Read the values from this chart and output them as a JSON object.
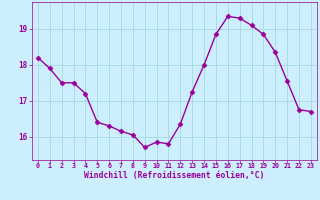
{
  "x": [
    0,
    1,
    2,
    3,
    4,
    5,
    6,
    7,
    8,
    9,
    10,
    11,
    12,
    13,
    14,
    15,
    16,
    17,
    18,
    19,
    20,
    21,
    22,
    23
  ],
  "y": [
    18.2,
    17.9,
    17.5,
    17.5,
    17.2,
    16.4,
    16.3,
    16.15,
    16.05,
    15.7,
    15.85,
    15.8,
    16.35,
    17.25,
    18.0,
    18.85,
    19.35,
    19.3,
    19.1,
    18.85,
    18.35,
    17.55,
    16.75,
    16.7
  ],
  "line_color": "#990099",
  "marker": "D",
  "marker_size": 2.5,
  "bg_color": "#cceeff",
  "grid_color": "#aadddd",
  "xlabel": "Windchill (Refroidissement éolien,°C)",
  "xlabel_color": "#990099",
  "tick_color": "#990099",
  "xlim": [
    -0.5,
    23.5
  ],
  "ylim": [
    15.35,
    19.75
  ],
  "yticks": [
    16,
    17,
    18,
    19
  ],
  "xticks": [
    0,
    1,
    2,
    3,
    4,
    5,
    6,
    7,
    8,
    9,
    10,
    11,
    12,
    13,
    14,
    15,
    16,
    17,
    18,
    19,
    20,
    21,
    22,
    23
  ],
  "line_width": 1.0,
  "xtick_fontsize": 4.8,
  "ytick_fontsize": 5.5,
  "xlabel_fontsize": 5.8
}
